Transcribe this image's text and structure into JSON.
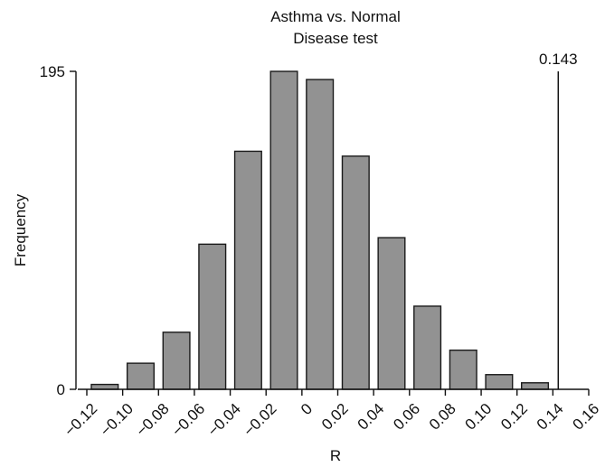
{
  "chart_data": {
    "type": "bar",
    "title": "Asthma vs. Normal",
    "subtitle": "Disease test",
    "xlabel": "R",
    "ylabel": "Frequency",
    "xlim": [
      -0.12,
      0.16
    ],
    "ylim": [
      0,
      195
    ],
    "x_ticks": [
      "−0.12",
      "−0.10",
      "−0.08",
      "−0.06",
      "−0.04",
      "−0.02",
      "0",
      "0.02",
      "0.04",
      "0.06",
      "0.08",
      "0.10",
      "0.12",
      "0.14",
      "0.16"
    ],
    "x_tick_values": [
      -0.12,
      -0.1,
      -0.08,
      -0.06,
      -0.04,
      -0.02,
      0,
      0.02,
      0.04,
      0.06,
      0.08,
      0.1,
      0.12,
      0.14,
      0.16
    ],
    "y_ticks": [
      "0",
      "195"
    ],
    "y_tick_values": [
      0,
      195
    ],
    "bins": [
      {
        "x0": -0.12,
        "x1": -0.1,
        "value": 3
      },
      {
        "x0": -0.1,
        "x1": -0.08,
        "value": 16
      },
      {
        "x0": -0.08,
        "x1": -0.06,
        "value": 35
      },
      {
        "x0": -0.06,
        "x1": -0.04,
        "value": 89
      },
      {
        "x0": -0.04,
        "x1": -0.02,
        "value": 146
      },
      {
        "x0": -0.02,
        "x1": 0.0,
        "value": 195
      },
      {
        "x0": 0.0,
        "x1": 0.02,
        "value": 190
      },
      {
        "x0": 0.02,
        "x1": 0.04,
        "value": 143
      },
      {
        "x0": 0.04,
        "x1": 0.06,
        "value": 93
      },
      {
        "x0": 0.06,
        "x1": 0.08,
        "value": 51
      },
      {
        "x0": 0.08,
        "x1": 0.1,
        "value": 24
      },
      {
        "x0": 0.1,
        "x1": 0.12,
        "value": 9
      },
      {
        "x0": 0.12,
        "x1": 0.14,
        "value": 4
      }
    ],
    "reference_line": {
      "x": 0.143,
      "label": "0.143"
    },
    "bar_color": "#929292",
    "bar_edge_color": "#1a1a1a",
    "grid": false,
    "legend": "none"
  }
}
